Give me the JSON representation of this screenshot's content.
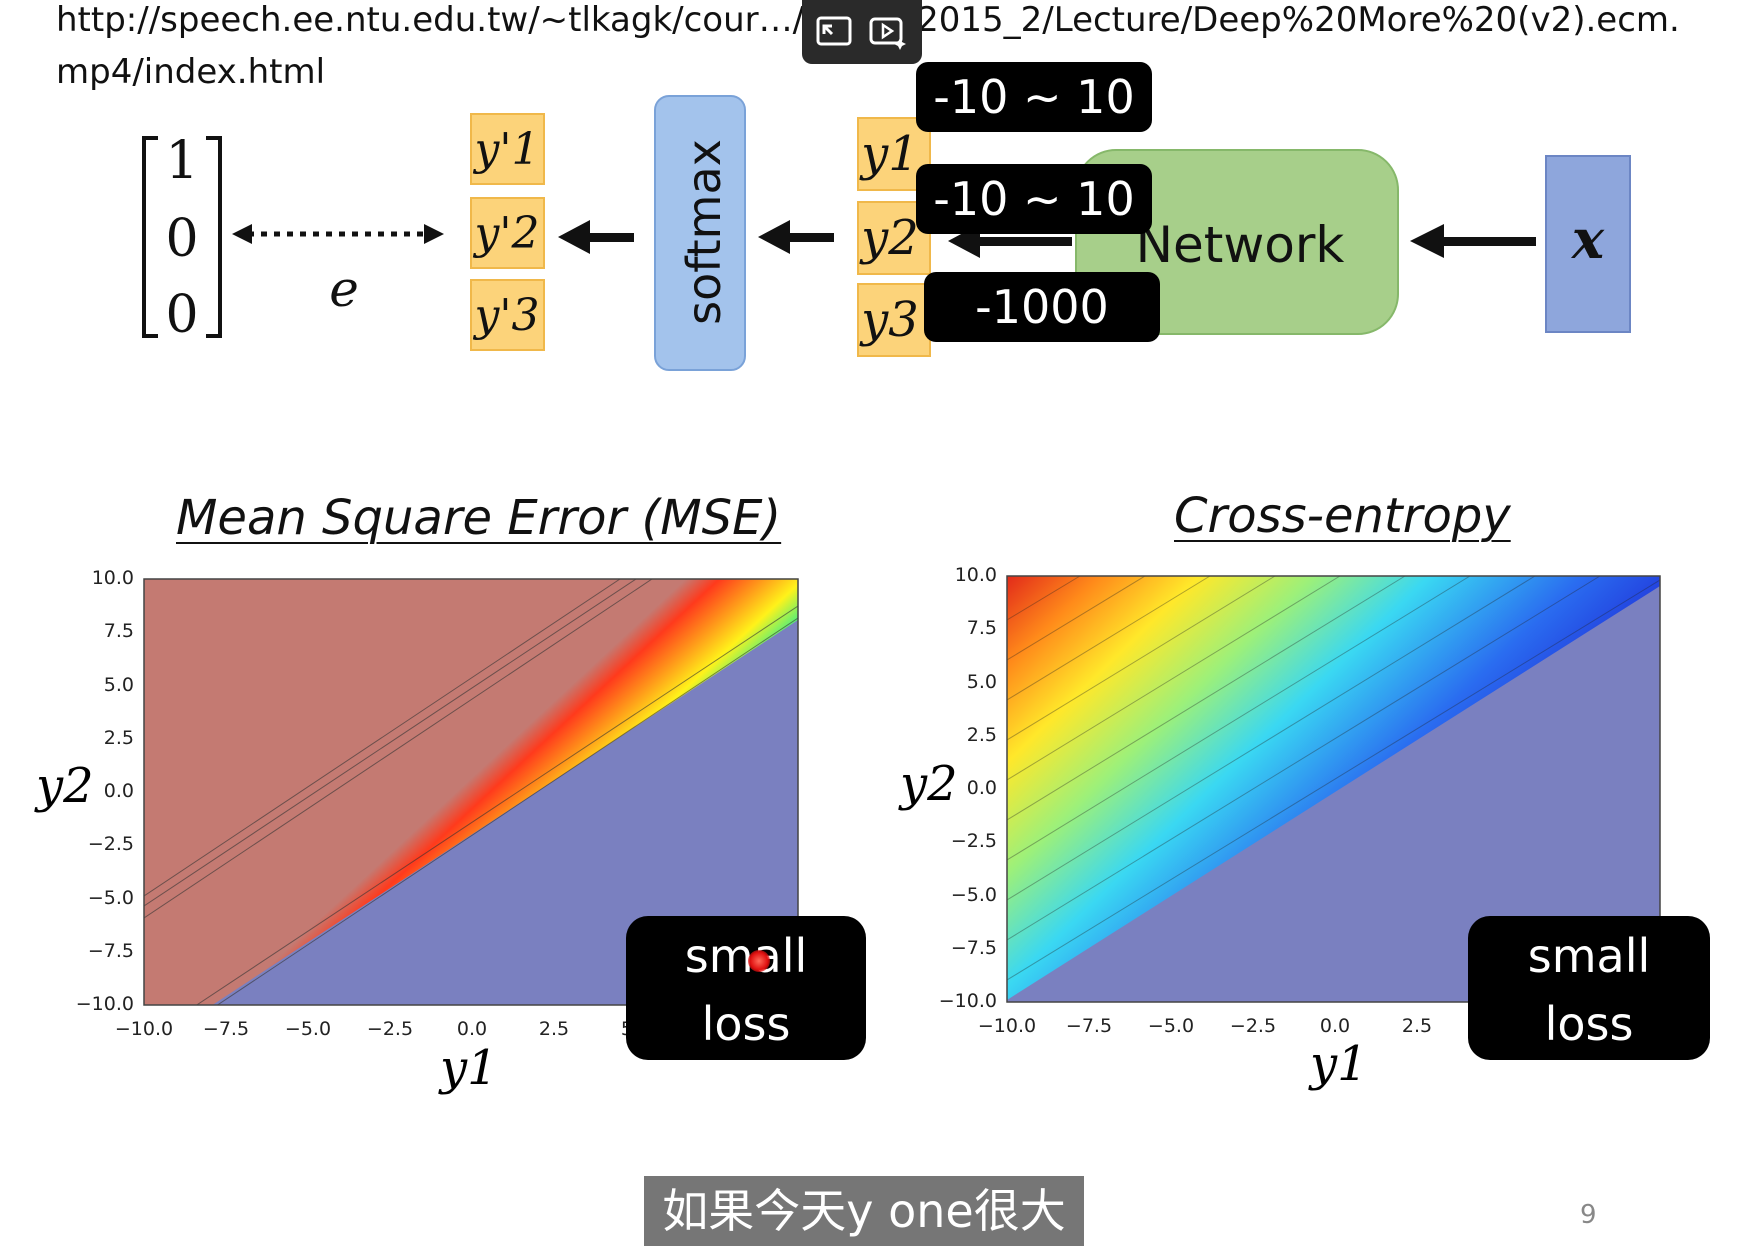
{
  "url_text": "http://speech.ee.ntu.edu.tw/~tlkagk/cour…/MLDS_2015_2/Lecture/Deep%20More%20(v2).ecm.mp4/index.html",
  "video_controls": {
    "icons": [
      "picture-in-picture-icon",
      "ai-video-icon"
    ]
  },
  "diagram": {
    "target_vector": [
      "1",
      "0",
      "0"
    ],
    "error_label": "e",
    "softmax_label": "softmax",
    "network_label": "Network",
    "input_label": "x",
    "outputs": [
      "y1",
      "y2",
      "y3"
    ],
    "softmax_outputs": [
      "y'1",
      "y'2",
      "y'3"
    ],
    "value_tags": [
      "-10 ~ 10",
      "-10 ~ 10",
      "-1000"
    ]
  },
  "plots": [
    {
      "title": "Mean Square Error (MSE)",
      "xlabel": "y1",
      "ylabel": "y2",
      "x_ticks": [
        "−10.0",
        "−7.5",
        "−5.0",
        "−2.5",
        "0.0",
        "2.5",
        "5.0"
      ],
      "y_ticks": [
        "10.0",
        "7.5",
        "5.0",
        "2.5",
        "0.0",
        "−2.5",
        "−5.0",
        "−7.5",
        "−10.0"
      ],
      "tag": [
        "small",
        "loss"
      ]
    },
    {
      "title": "Cross-entropy",
      "xlabel": "y1",
      "ylabel": "y2",
      "x_ticks": [
        "−10.0",
        "−7.5",
        "−5.0",
        "−2.5",
        "0.0",
        "2.5"
      ],
      "y_ticks": [
        "10.0",
        "7.5",
        "5.0",
        "2.5",
        "0.0",
        "−2.5",
        "−5.0",
        "−7.5",
        "−10.0"
      ],
      "tag": [
        "small",
        "loss"
      ]
    }
  ],
  "subtitle": "如果今天y one很大",
  "page_number": "9",
  "colors": {
    "box_yellow": "#fcd37a",
    "softmax_blue": "#a3c3ec",
    "network_green": "#a7cf8a",
    "input_blue": "#8ea6dc",
    "plot_red": "#c47a72",
    "plot_blue": "#7a80c0"
  }
}
